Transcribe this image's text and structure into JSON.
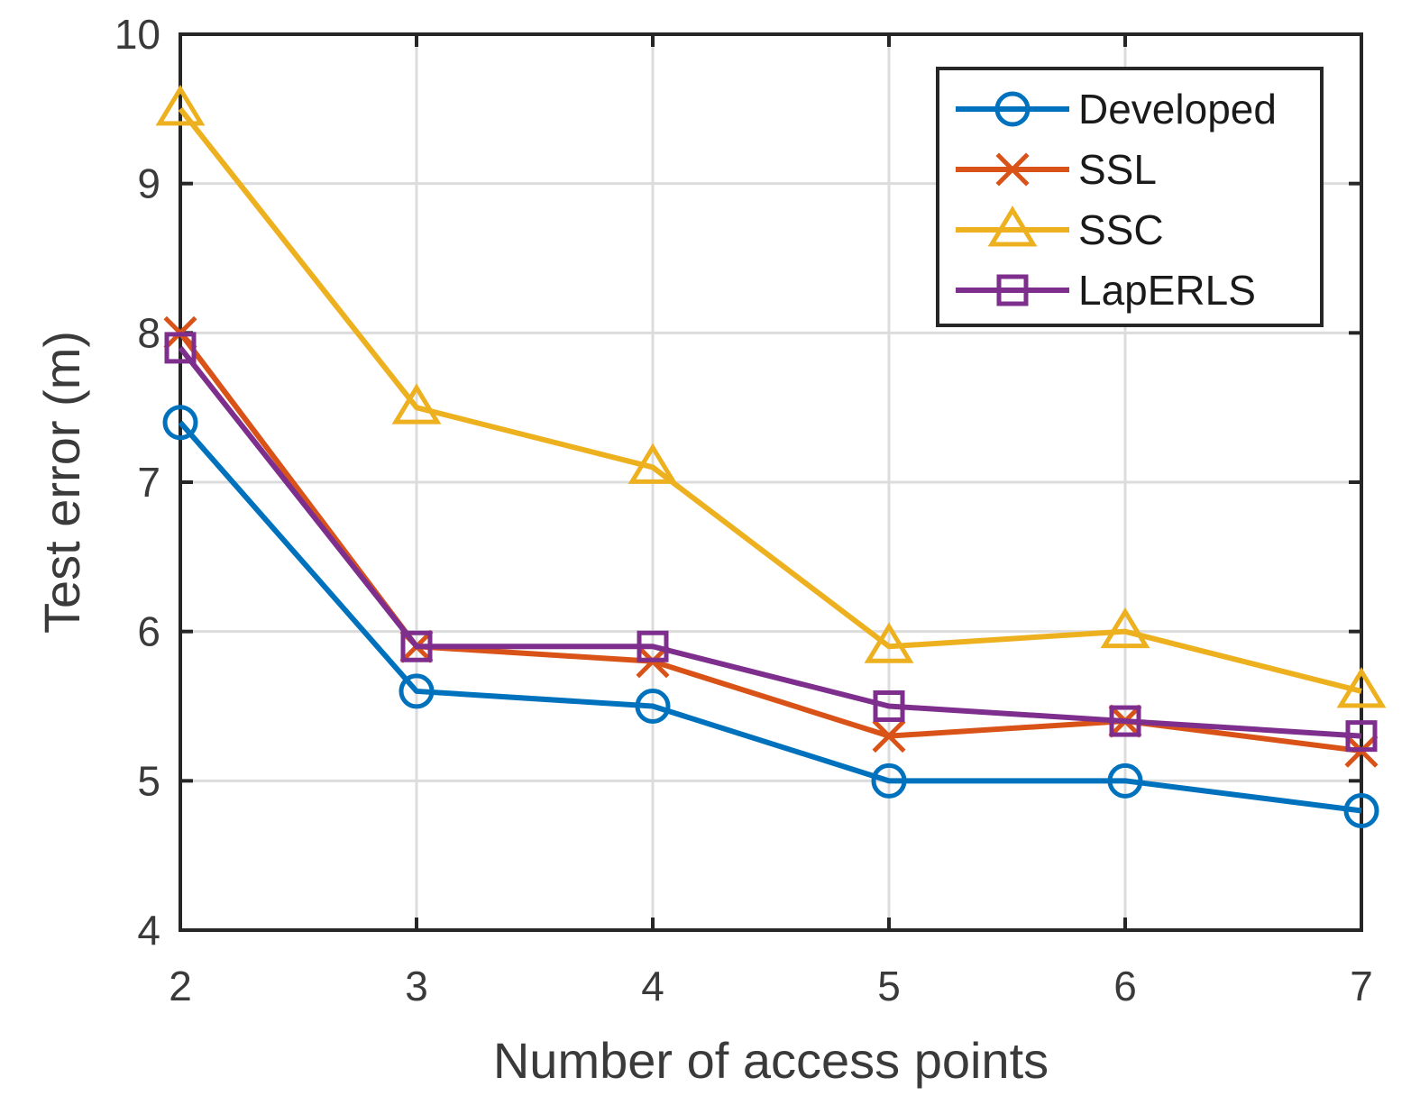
{
  "chart_data": {
    "type": "line",
    "title": "",
    "xlabel": "Number of access points",
    "ylabel": "Test error (m)",
    "x": [
      2,
      3,
      4,
      5,
      6,
      7
    ],
    "xlim": [
      2,
      7
    ],
    "ylim": [
      4,
      10
    ],
    "xticks": [
      2,
      3,
      4,
      5,
      6,
      7
    ],
    "yticks": [
      4,
      5,
      6,
      7,
      8,
      9,
      10
    ],
    "grid": true,
    "legend_position": "top-right",
    "series": [
      {
        "name": "Developed",
        "color": "#0072BD",
        "marker": "circle",
        "values": [
          7.4,
          5.6,
          5.5,
          5.0,
          5.0,
          4.8
        ]
      },
      {
        "name": "SSL",
        "color": "#D95319",
        "marker": "x",
        "values": [
          8.0,
          5.9,
          5.8,
          5.3,
          5.4,
          5.2
        ]
      },
      {
        "name": "SSC",
        "color": "#EDB120",
        "marker": "triangle",
        "values": [
          9.5,
          7.5,
          7.1,
          5.9,
          6.0,
          5.6
        ]
      },
      {
        "name": "LapERLS",
        "color": "#7E2F8E",
        "marker": "square",
        "values": [
          7.9,
          5.9,
          5.9,
          5.5,
          5.4,
          5.3
        ]
      }
    ]
  }
}
